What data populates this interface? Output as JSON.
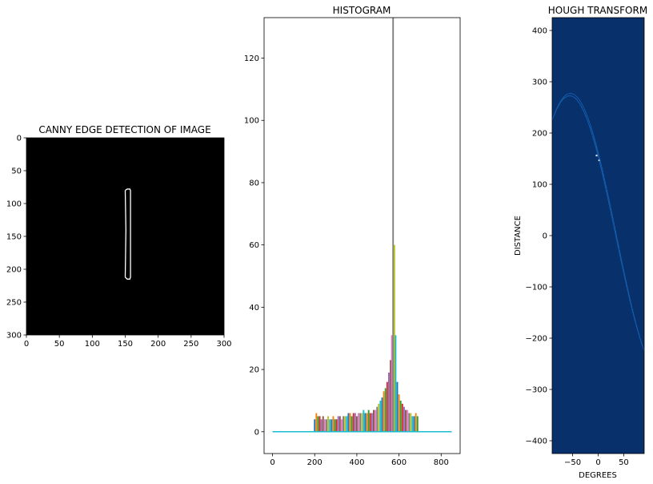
{
  "chart_data": [
    {
      "type": "image",
      "title": "CANNY EDGE DETECTION OF IMAGE",
      "xlabel": "",
      "ylabel": "",
      "xlim": [
        0,
        300
      ],
      "ylim": [
        300,
        0
      ],
      "xticks": [
        0,
        50,
        100,
        150,
        200,
        250,
        300
      ],
      "yticks": [
        0,
        50,
        100,
        150,
        200,
        250,
        300
      ],
      "colors": {
        "background": "#000000",
        "edge": "#ffffff"
      },
      "edge_contour": [
        [
          150,
          80
        ],
        [
          153,
          78
        ],
        [
          157,
          78
        ],
        [
          158,
          80
        ],
        [
          158,
          212
        ],
        [
          157,
          215
        ],
        [
          153,
          215
        ],
        [
          150,
          212
        ],
        [
          151,
          140
        ],
        [
          150,
          80
        ]
      ]
    },
    {
      "type": "line",
      "title": "HISTOGRAM",
      "xlabel": "",
      "ylabel": "",
      "xlim": [
        -40,
        890
      ],
      "ylim": [
        -7,
        133
      ],
      "xticks": [
        0,
        200,
        400,
        600,
        800
      ],
      "yticks": [
        0,
        20,
        40,
        60,
        80,
        100,
        120
      ],
      "baseline": {
        "x": [
          0,
          850
        ],
        "y": 0,
        "color": "#17becf"
      },
      "colors": [
        "#1f77b4",
        "#ff7f0e",
        "#2ca02c",
        "#d62728",
        "#9467bd",
        "#8c564b",
        "#e377c2",
        "#7f7f7f",
        "#bcbd22",
        "#17becf"
      ],
      "bins": [
        {
          "x": 200,
          "y": 4
        },
        {
          "x": 208,
          "y": 6
        },
        {
          "x": 216,
          "y": 5
        },
        {
          "x": 224,
          "y": 5
        },
        {
          "x": 232,
          "y": 4
        },
        {
          "x": 240,
          "y": 5
        },
        {
          "x": 248,
          "y": 4
        },
        {
          "x": 256,
          "y": 4
        },
        {
          "x": 264,
          "y": 5
        },
        {
          "x": 272,
          "y": 4
        },
        {
          "x": 280,
          "y": 4
        },
        {
          "x": 288,
          "y": 5
        },
        {
          "x": 296,
          "y": 4
        },
        {
          "x": 304,
          "y": 4
        },
        {
          "x": 312,
          "y": 5
        },
        {
          "x": 320,
          "y": 5
        },
        {
          "x": 328,
          "y": 4
        },
        {
          "x": 336,
          "y": 5
        },
        {
          "x": 344,
          "y": 5
        },
        {
          "x": 352,
          "y": 5
        },
        {
          "x": 360,
          "y": 6
        },
        {
          "x": 368,
          "y": 6
        },
        {
          "x": 376,
          "y": 5
        },
        {
          "x": 384,
          "y": 6
        },
        {
          "x": 392,
          "y": 6
        },
        {
          "x": 400,
          "y": 5
        },
        {
          "x": 408,
          "y": 6
        },
        {
          "x": 416,
          "y": 6
        },
        {
          "x": 424,
          "y": 6
        },
        {
          "x": 432,
          "y": 7
        },
        {
          "x": 440,
          "y": 6
        },
        {
          "x": 448,
          "y": 6
        },
        {
          "x": 456,
          "y": 7
        },
        {
          "x": 464,
          "y": 6
        },
        {
          "x": 472,
          "y": 6
        },
        {
          "x": 480,
          "y": 7
        },
        {
          "x": 488,
          "y": 7
        },
        {
          "x": 496,
          "y": 8
        },
        {
          "x": 504,
          "y": 9
        },
        {
          "x": 512,
          "y": 10
        },
        {
          "x": 520,
          "y": 11
        },
        {
          "x": 528,
          "y": 13
        },
        {
          "x": 536,
          "y": 14
        },
        {
          "x": 544,
          "y": 16
        },
        {
          "x": 552,
          "y": 19
        },
        {
          "x": 560,
          "y": 23
        },
        {
          "x": 566,
          "y": 31
        },
        {
          "x": 572,
          "y": 133
        },
        {
          "x": 578,
          "y": 60
        },
        {
          "x": 584,
          "y": 31
        },
        {
          "x": 592,
          "y": 16
        },
        {
          "x": 600,
          "y": 12
        },
        {
          "x": 608,
          "y": 10
        },
        {
          "x": 616,
          "y": 9
        },
        {
          "x": 624,
          "y": 8
        },
        {
          "x": 632,
          "y": 7
        },
        {
          "x": 640,
          "y": 7
        },
        {
          "x": 648,
          "y": 6
        },
        {
          "x": 656,
          "y": 6
        },
        {
          "x": 664,
          "y": 5
        },
        {
          "x": 672,
          "y": 5
        },
        {
          "x": 680,
          "y": 6
        },
        {
          "x": 688,
          "y": 5
        }
      ]
    },
    {
      "type": "heatmap",
      "title": "HOUGH TRANSFORM",
      "xlabel": "DEGREES",
      "ylabel": "DISTANCE",
      "xlim": [
        -90,
        90
      ],
      "ylim": [
        -425,
        425
      ],
      "xticks": [
        -50,
        0,
        50
      ],
      "yticks": [
        -400,
        -300,
        -200,
        -100,
        0,
        100,
        200,
        300,
        400
      ],
      "colors": {
        "background": "#08306b",
        "curve": "#1c5ea8",
        "peak": "#d6e6f4"
      },
      "peak": {
        "theta": 0,
        "rho": 153
      }
    }
  ]
}
